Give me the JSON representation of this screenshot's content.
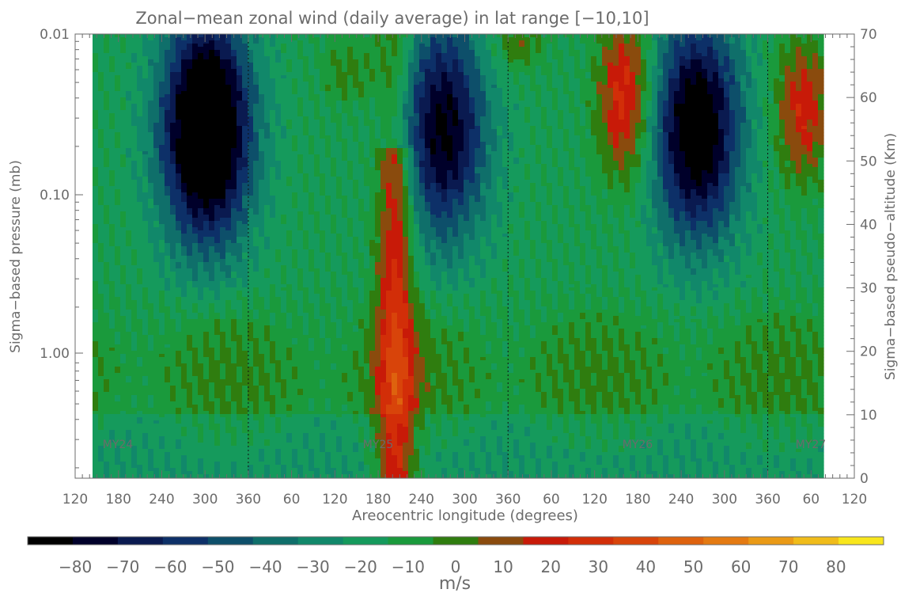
{
  "chart_data": {
    "type": "heatmap",
    "title": "Zonal−mean zonal wind (daily average) in lat range [−10,10]",
    "xlabel": "Areocentric longitude (degrees)",
    "ylabel_left": "Sigma−based pressure (mb)",
    "ylabel_right": "Sigma−based pseudo−altitude (Km)",
    "x_tick_labels": [
      "120",
      "180",
      "240",
      "300",
      "360",
      "60",
      "120",
      "180",
      "240",
      "300",
      "360",
      "60",
      "120",
      "180",
      "240",
      "300",
      "360",
      "60",
      "120"
    ],
    "y_left_tick_labels": [
      "0.01",
      "0.10",
      "1.00"
    ],
    "y_right_tick_labels": [
      "0",
      "10",
      "20",
      "30",
      "40",
      "50",
      "60",
      "70"
    ],
    "y_right_range": [
      0,
      70
    ],
    "year_labels": [
      "MY24",
      "MY25",
      "MY26",
      "MY27"
    ],
    "colorbar": {
      "unit": "m/s",
      "tick_labels": [
        "−80",
        "−70",
        "−60",
        "−50",
        "−40",
        "−30",
        "−20",
        "−10",
        "0",
        "10",
        "20",
        "30",
        "40",
        "50",
        "60",
        "70",
        "80"
      ],
      "range": [
        -90,
        90
      ],
      "step": 10
    },
    "colors": [
      "#000000",
      "#00002a",
      "#0a1a50",
      "#0d3068",
      "#0d4f6a",
      "#0f6f6a",
      "#11886a",
      "#159a5c",
      "#1a9a3c",
      "#2f7d0f",
      "#8a4b0d",
      "#c81a08",
      "#d22e08",
      "#d8440a",
      "#de620e",
      "#e47a12",
      "#ea9a16",
      "#f0bc1a",
      "#f8e61c"
    ],
    "grid": false,
    "legend": "colorbar-bottom"
  }
}
